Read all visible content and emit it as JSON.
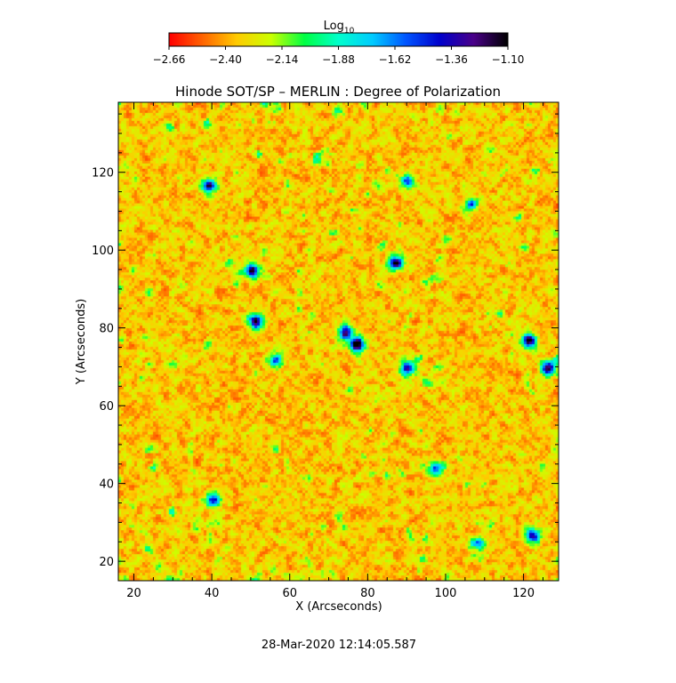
{
  "chart_data": {
    "type": "heatmap",
    "title": "Hinode SOT/SP – MERLIN : Degree of Polarization",
    "xlabel": "X (Arcseconds)",
    "ylabel": "Y (Arcseconds)",
    "xlim": [
      16,
      129
    ],
    "ylim": [
      15,
      138
    ],
    "x_ticks": [
      20,
      40,
      60,
      80,
      100,
      120
    ],
    "y_ticks": [
      20,
      40,
      60,
      80,
      100,
      120
    ],
    "colorbar": {
      "label_base": "Log",
      "label_sub": "10",
      "range": [
        -2.66,
        -1.1
      ],
      "ticks": [
        "−2.66",
        "−2.40",
        "−2.14",
        "−1.88",
        "−1.62",
        "−1.36",
        "−1.10"
      ],
      "colormap": [
        "#ff0000",
        "#ff6600",
        "#ffcc00",
        "#ccff00",
        "#00ff44",
        "#00ffcc",
        "#00ccff",
        "#0055ff",
        "#0000cc",
        "#4a0088",
        "#000000"
      ]
    },
    "strong_polarization_regions": [
      {
        "x": 77,
        "y": 76,
        "strength": 1.0
      },
      {
        "x": 74,
        "y": 79,
        "strength": 0.8
      },
      {
        "x": 51,
        "y": 82,
        "strength": 0.85
      },
      {
        "x": 50,
        "y": 95,
        "strength": 0.85
      },
      {
        "x": 87,
        "y": 97,
        "strength": 0.85
      },
      {
        "x": 90,
        "y": 70,
        "strength": 0.75
      },
      {
        "x": 121,
        "y": 77,
        "strength": 0.85
      },
      {
        "x": 126,
        "y": 70,
        "strength": 0.85
      },
      {
        "x": 39,
        "y": 117,
        "strength": 0.75
      },
      {
        "x": 40,
        "y": 36,
        "strength": 0.7
      },
      {
        "x": 122,
        "y": 27,
        "strength": 0.7
      },
      {
        "x": 97,
        "y": 44,
        "strength": 0.55
      },
      {
        "x": 90,
        "y": 118,
        "strength": 0.55
      },
      {
        "x": 56,
        "y": 72,
        "strength": 0.55
      },
      {
        "x": 108,
        "y": 25,
        "strength": 0.5
      },
      {
        "x": 106,
        "y": 112,
        "strength": 0.45
      }
    ]
  },
  "timestamp": "28-Mar-2020 12:14:05.587"
}
